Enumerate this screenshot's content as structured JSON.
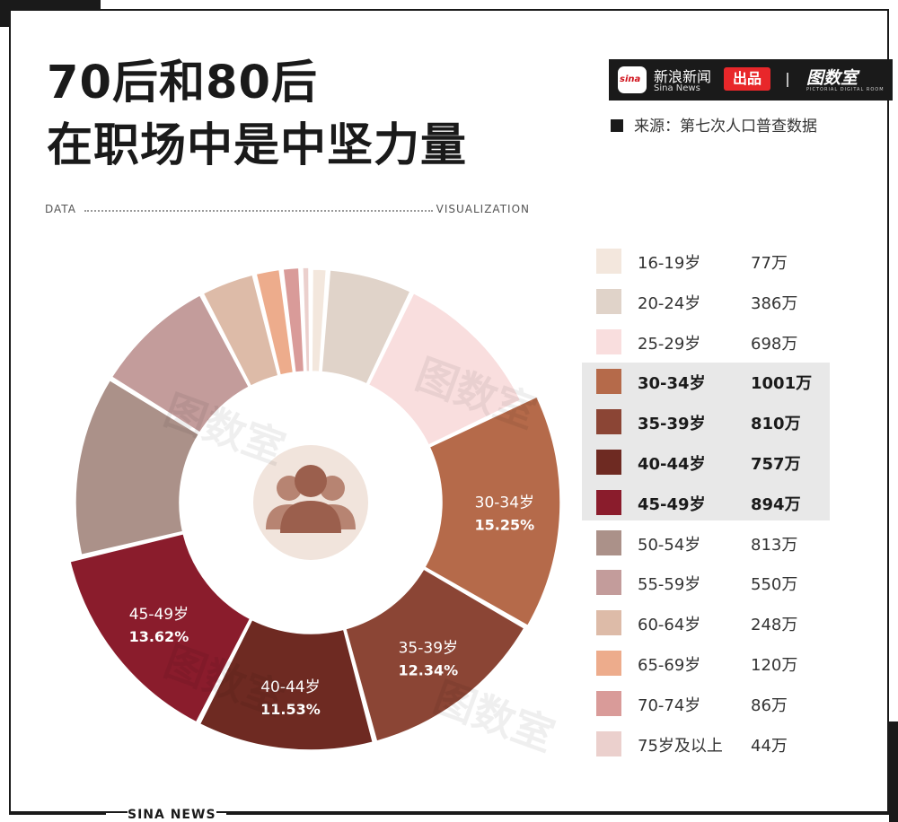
{
  "header": {
    "title_line1": "70后和80后",
    "title_line2": "在职场中是中坚力量",
    "data_left": "DATA",
    "data_right": "VISUALIZATION"
  },
  "brand": {
    "logo_text": "sina",
    "name": "新浪新闻",
    "sub": "Sina News",
    "badge": "出品",
    "tushi": "图数室",
    "tushi_sub": "PICTORIAL DIGITAL ROOM"
  },
  "source": "来源：第七次人口普查数据",
  "footer": "SINA NEWS",
  "watermark": "图数室",
  "colors": {
    "frame": "#1a1a1a",
    "badge": "#e8272a",
    "highlight_bg": "#e8e8e8"
  },
  "icon": "people-group-icon",
  "chart_data": {
    "type": "pie",
    "style": "donut",
    "unit": "万",
    "legend_position": "right",
    "slices": [
      {
        "label": "16-19岁",
        "value": 77,
        "display": "77万",
        "color": "#f3e7dd",
        "highlight": false
      },
      {
        "label": "20-24岁",
        "value": 386,
        "display": "386万",
        "color": "#e0d3c9",
        "highlight": false
      },
      {
        "label": "25-29岁",
        "value": 698,
        "display": "698万",
        "color": "#f9dede",
        "highlight": false
      },
      {
        "label": "30-34岁",
        "value": 1001,
        "display": "1001万",
        "color": "#b56a4a",
        "highlight": true,
        "pct": "15.25%"
      },
      {
        "label": "35-39岁",
        "value": 810,
        "display": "810万",
        "color": "#8b4535",
        "highlight": true,
        "pct": "12.34%"
      },
      {
        "label": "40-44岁",
        "value": 757,
        "display": "757万",
        "color": "#6e2a22",
        "highlight": true,
        "pct": "11.53%"
      },
      {
        "label": "45-49岁",
        "value": 894,
        "display": "894万",
        "color": "#8a1c2c",
        "highlight": true,
        "pct": "13.62%"
      },
      {
        "label": "50-54岁",
        "value": 813,
        "display": "813万",
        "color": "#ab9189",
        "highlight": false
      },
      {
        "label": "55-59岁",
        "value": 550,
        "display": "550万",
        "color": "#c39c9b",
        "highlight": false
      },
      {
        "label": "60-64岁",
        "value": 248,
        "display": "248万",
        "color": "#ddbba8",
        "highlight": false
      },
      {
        "label": "65-69岁",
        "value": 120,
        "display": "120万",
        "color": "#edac8c",
        "highlight": false
      },
      {
        "label": "70-74岁",
        "value": 86,
        "display": "86万",
        "color": "#d99b99",
        "highlight": false
      },
      {
        "label": "75岁及以上",
        "value": 44,
        "display": "44万",
        "color": "#ebd0cd",
        "highlight": false
      }
    ]
  }
}
